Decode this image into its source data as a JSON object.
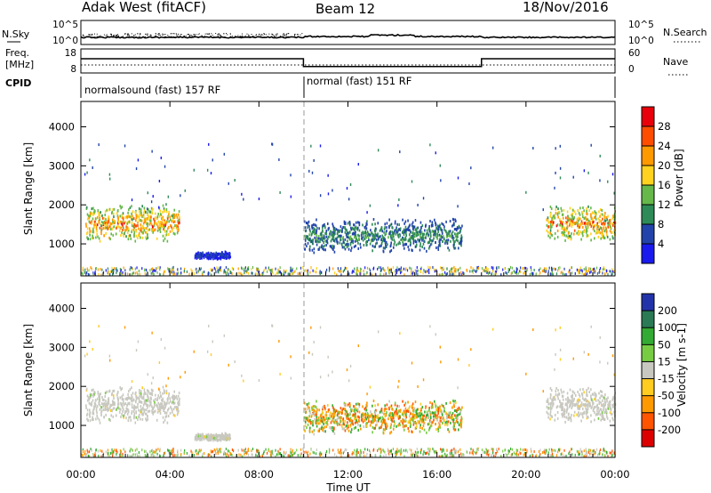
{
  "header": {
    "station": "Adak West (fitACF)",
    "beam": "Beam 12",
    "date": "18/Nov/2016"
  },
  "side_labels": {
    "nsky": "N.Sky",
    "freq_line1": "Freq.",
    "freq_line2": "[MHz]",
    "cpid": "CPID",
    "nsearch": "N.Search",
    "nave": "Nave"
  },
  "tick_labels": {
    "nsky_top": "10^5",
    "nsky_bottom": "10^0",
    "nsearch_top": "10^5",
    "nsearch_bottom": "10^0",
    "freq_top": "18",
    "freq_bottom": "8",
    "nave_top": "60",
    "nave_bottom": "0"
  },
  "cpid_segments": [
    {
      "label": "normalsound (fast) 157 RF",
      "start_hour": 0,
      "end_hour": 10
    },
    {
      "label": "normal (fast) 151 RF",
      "start_hour": 10,
      "end_hour": 24
    }
  ],
  "chart_data": {
    "type": "heatmap",
    "x_axis": {
      "label": "Time UT",
      "range_hours": [
        0,
        24
      ],
      "tick_labels": [
        "00:00",
        "04:00",
        "08:00",
        "12:00",
        "16:00",
        "20:00",
        "00:00"
      ]
    },
    "y_axis": {
      "label": "Slant Range [km]",
      "range_km": [
        180,
        4650
      ],
      "tick_labels": [
        "1000",
        "2000",
        "3000",
        "4000"
      ]
    },
    "panels": [
      {
        "name": "power",
        "colorbar_label": "Power [dB]",
        "colorbar_ticks": [
          "4",
          "8",
          "12",
          "16",
          "20",
          "24",
          "28"
        ],
        "colors": [
          "#1a1aee",
          "#2244aa",
          "#2e8b57",
          "#66b84a",
          "#ffd21f",
          "#ff9900",
          "#ff4d00",
          "#e8000b"
        ]
      },
      {
        "name": "velocity",
        "colorbar_label": "Velocity [m s-1]",
        "colorbar_ticks": [
          "200",
          "100",
          "50",
          "15",
          "-15",
          "-50",
          "-100",
          "-200"
        ],
        "colors": [
          "#2233aa",
          "#2a7a55",
          "#33aa33",
          "#77cc44",
          "#c8c8c0",
          "#ffcc22",
          "#ff9900",
          "#ff5500",
          "#dd0000"
        ]
      }
    ],
    "echo_regions": [
      {
        "start_hour": 0.2,
        "end_hour": 4.4,
        "range_km": [
          1000,
          2000
        ],
        "power_peak_db": 26,
        "velocity_class": "near-zero"
      },
      {
        "start_hour": 5.1,
        "end_hour": 6.7,
        "range_km": [
          600,
          800
        ],
        "power_peak_db": 6,
        "velocity_class": "near-zero"
      },
      {
        "start_hour": 10.0,
        "end_hour": 17.1,
        "range_km": [
          750,
          1650
        ],
        "power_peak_db": 12,
        "velocity_class": "mixed"
      },
      {
        "start_hour": 20.9,
        "end_hour": 24.0,
        "range_km": [
          1050,
          2000
        ],
        "power_peak_db": 26,
        "velocity_class": "near-zero"
      }
    ],
    "frequency_mhz": [
      {
        "start_hour": 0,
        "end_hour": 10,
        "value": 14.0
      },
      {
        "start_hour": 10,
        "end_hour": 18,
        "value": 10.5
      },
      {
        "start_hour": 18,
        "end_hour": 24,
        "value": 14.0
      }
    ]
  }
}
